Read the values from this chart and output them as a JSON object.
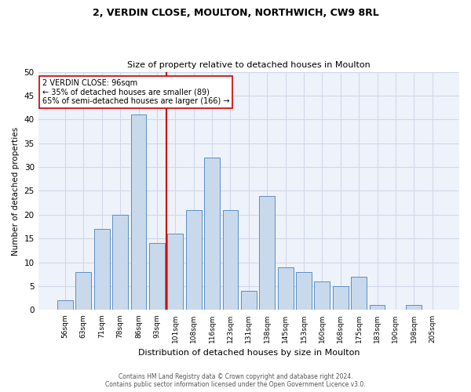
{
  "title1": "2, VERDIN CLOSE, MOULTON, NORTHWICH, CW9 8RL",
  "title2": "Size of property relative to detached houses in Moulton",
  "xlabel": "Distribution of detached houses by size in Moulton",
  "ylabel": "Number of detached properties",
  "bar_labels": [
    "56sqm",
    "63sqm",
    "71sqm",
    "78sqm",
    "86sqm",
    "93sqm",
    "101sqm",
    "108sqm",
    "116sqm",
    "123sqm",
    "131sqm",
    "138sqm",
    "145sqm",
    "153sqm",
    "160sqm",
    "168sqm",
    "175sqm",
    "183sqm",
    "190sqm",
    "198sqm",
    "205sqm"
  ],
  "bar_values": [
    2,
    8,
    17,
    20,
    41,
    14,
    16,
    21,
    32,
    21,
    4,
    24,
    9,
    8,
    6,
    5,
    7,
    1,
    0,
    1,
    0
  ],
  "bar_color": "#c9d9ec",
  "bar_edge_color": "#5a8fc3",
  "grid_color": "#d0d8e8",
  "background_color": "#eef2fa",
  "vline_x": 5.5,
  "vline_color": "#cc0000",
  "annotation_text": "2 VERDIN CLOSE: 96sqm\n← 35% of detached houses are smaller (89)\n65% of semi-detached houses are larger (166) →",
  "annotation_box_color": "#ffffff",
  "annotation_box_edge": "#cc0000",
  "footer1": "Contains HM Land Registry data © Crown copyright and database right 2024.",
  "footer2": "Contains public sector information licensed under the Open Government Licence v3.0.",
  "ylim": [
    0,
    50
  ],
  "yticks": [
    0,
    5,
    10,
    15,
    20,
    25,
    30,
    35,
    40,
    45,
    50
  ]
}
